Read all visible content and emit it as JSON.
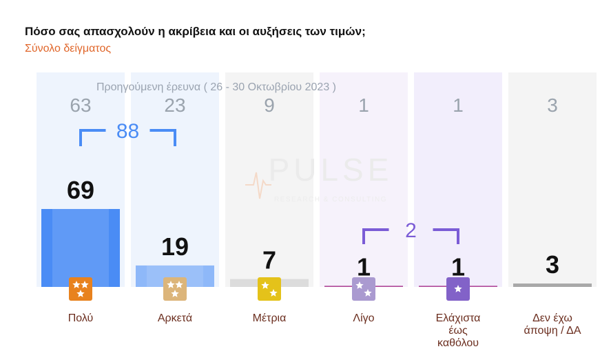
{
  "title": "Πόσο σας απασχολούν η ακρίβεια και οι αυξήσεις των τιμών;",
  "subtitle": "Σύνολο δείγματος",
  "watermark": {
    "main": "PULSE",
    "sub": "RESEARCH & CONSULTING"
  },
  "chart_data": {
    "type": "bar",
    "previous_label": "Προηγούμενη έρευνα ( 26 - 30 Οκτωβρίου 2023 )",
    "categories": [
      {
        "label": [
          "Πολύ"
        ],
        "value": 69,
        "previous": 63,
        "bar_color": "#4a8cf5",
        "bg_color": "#eef4fd",
        "icon": "three-stars-icon",
        "icon_color": "#e8821e",
        "stars": 3
      },
      {
        "label": [
          "Αρκετά"
        ],
        "value": 19,
        "previous": 23,
        "bar_color": "#8eb8f9",
        "bg_color": "#eef4fd",
        "icon": "three-stars-icon",
        "icon_color": "#dcb57a",
        "stars": 3
      },
      {
        "label": [
          "Μέτρια"
        ],
        "value": 7,
        "previous": 9,
        "bar_color": "#dcdcdc",
        "bg_color": "#f4f4f4",
        "icon": "two-stars-icon",
        "icon_color": "#e4c21a",
        "stars": 2
      },
      {
        "label": [
          "Λίγο"
        ],
        "value": 1,
        "previous": 1,
        "bar_color": "#b04a9a",
        "bg_color": "#f6f2fb",
        "icon": "two-stars-icon",
        "icon_color": "#aa9ad0",
        "stars": 2
      },
      {
        "label": [
          "Ελάχιστα",
          "έως",
          "καθόλου"
        ],
        "value": 1,
        "previous": 1,
        "bar_color": "#b04a9a",
        "bg_color": "#f2eefc",
        "icon": "one-star-icon",
        "icon_color": "#8262c8",
        "stars": 1
      },
      {
        "label": [
          "Δεν έχω",
          "άποψη / ΔΑ"
        ],
        "value": 3,
        "previous": 3,
        "bar_color": "#a8a8a8",
        "bg_color": "#f4f4f4",
        "icon": "none",
        "icon_color": "",
        "stars": 0
      }
    ],
    "groups": [
      {
        "value": 88,
        "from": 0,
        "to": 1,
        "color": "#4a8cf5"
      },
      {
        "value": 2,
        "from": 3,
        "to": 4,
        "color": "#7b5cd6"
      }
    ]
  }
}
